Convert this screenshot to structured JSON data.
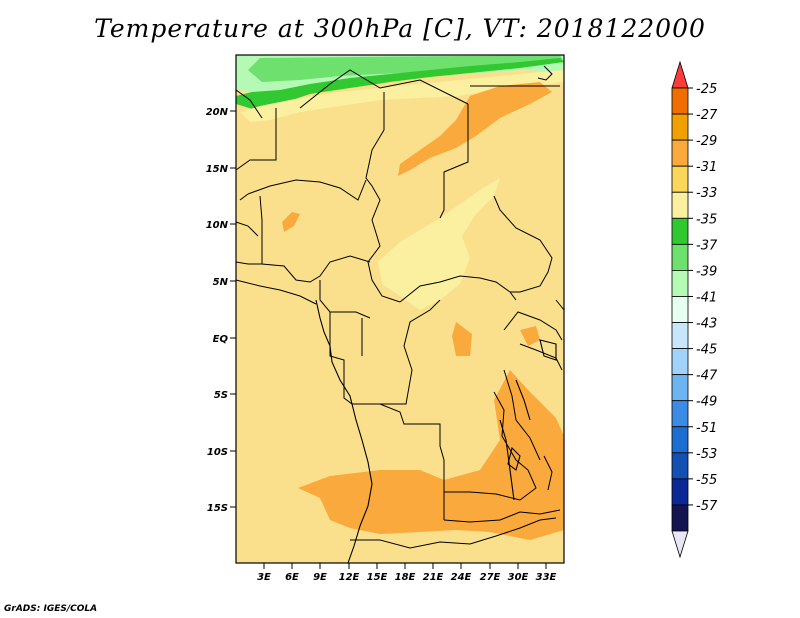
{
  "title": "Temperature at 300hPa [C], VT: 2018122000",
  "credit": "GrADS: IGES/COLA",
  "map": {
    "lat_labels": [
      "20N",
      "15N",
      "10N",
      "5N",
      "EQ",
      "5S",
      "10S",
      "15S"
    ],
    "lon_labels": [
      "3E",
      "6E",
      "9E",
      "12E",
      "15E",
      "18E",
      "21E",
      "24E",
      "27E",
      "30E",
      "33E"
    ],
    "background_color": "#fae08c"
  },
  "colorbar": {
    "labels": [
      "-25",
      "-27",
      "-29",
      "-31",
      "-33",
      "-35",
      "-37",
      "-39",
      "-41",
      "-43",
      "-45",
      "-47",
      "-49",
      "-51",
      "-53",
      "-55",
      "-57"
    ],
    "colors": [
      "#fa3c3c",
      "#f06e00",
      "#f0a000",
      "#faa93c",
      "#fad75a",
      "#faf0a0",
      "#32c832",
      "#6ee06e",
      "#b4fab4",
      "#e6fff0",
      "#c8e6fa",
      "#a0d2fa",
      "#6eb4f0",
      "#3c8ce6",
      "#1e6ed2",
      "#1450b4",
      "#0a2896",
      "#141450",
      "#e6e6f5"
    ]
  }
}
